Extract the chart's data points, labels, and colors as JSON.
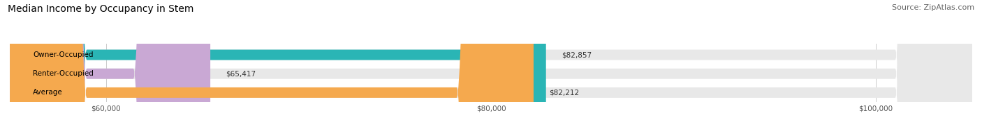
{
  "title": "Median Income by Occupancy in Stem",
  "source": "Source: ZipAtlas.com",
  "categories": [
    "Owner-Occupied",
    "Renter-Occupied",
    "Average"
  ],
  "values": [
    82857,
    65417,
    82212
  ],
  "labels": [
    "$82,857",
    "$65,417",
    "$82,212"
  ],
  "bar_colors": [
    "#2ab5b5",
    "#c9a8d4",
    "#f5a94e"
  ],
  "bar_bg_color": "#e8e8e8",
  "xlim": [
    55000,
    105000
  ],
  "xticks": [
    60000,
    80000,
    100000
  ],
  "xtick_labels": [
    "$60,000",
    "$80,000",
    "$100,000"
  ],
  "title_fontsize": 10,
  "source_fontsize": 8,
  "bar_height": 0.55,
  "figsize": [
    14.06,
    1.96
  ],
  "dpi": 100
}
